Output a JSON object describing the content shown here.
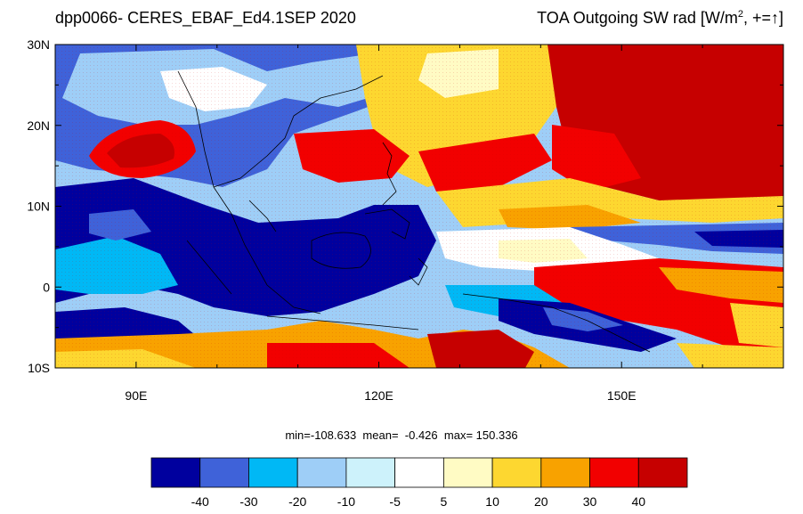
{
  "title_left": "dpp0066- CERES_EBAF_Ed4.1SEP 2020",
  "title_right_main": "TOA Outgoing SW rad [W/m",
  "title_right_exp": "2",
  "title_right_tail": ", +=",
  "title_right_arrow": "↑",
  "title_right_close": "]",
  "stats": {
    "min_label": "min=",
    "min": "-108.633",
    "mean_label": "mean=",
    "mean": "-0.426",
    "max_label": "max=",
    "max": "150.336"
  },
  "axes": {
    "lat_labels": [
      "30N",
      "20N",
      "10N",
      "0",
      "10S"
    ],
    "lat_values": [
      30,
      20,
      10,
      0,
      -10
    ],
    "lon_labels": [
      "90E",
      "120E",
      "150E"
    ],
    "lon_values": [
      90,
      120,
      150
    ],
    "lon_range": [
      80,
      170
    ],
    "lat_range": [
      -10,
      30
    ]
  },
  "colorbar": {
    "labels": [
      "-40",
      "-30",
      "-20",
      "-10",
      "-5",
      "5",
      "10",
      "20",
      "30",
      "40"
    ],
    "colors": [
      "#00009e",
      "#3f62d9",
      "#00b8f5",
      "#9ecef7",
      "#cdf2fb",
      "#ffffff",
      "#fffbc4",
      "#fdd730",
      "#f8a200",
      "#f20000",
      "#c60000"
    ]
  },
  "map_colors": {
    "land_outline": "#000000"
  }
}
